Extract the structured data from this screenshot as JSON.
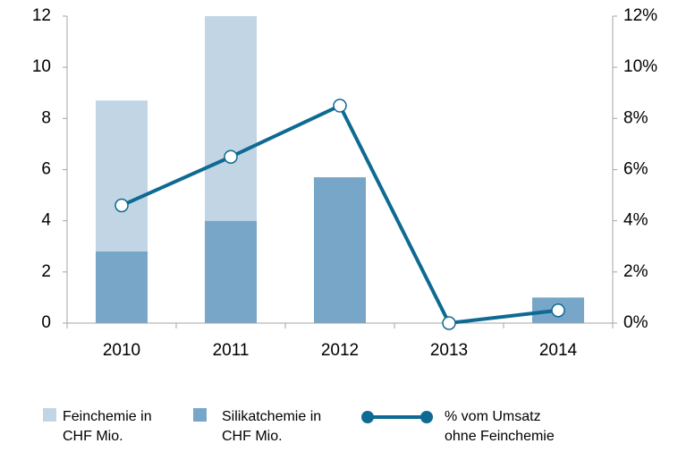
{
  "chart_data": {
    "type": "bar-line",
    "categories": [
      "2010",
      "2011",
      "2012",
      "2013",
      "2014"
    ],
    "series": [
      {
        "name": "Silikatchemie in CHF Mio.",
        "type": "bar",
        "color": "#77a6c8",
        "values": [
          2.8,
          4.0,
          5.7,
          0,
          1.0
        ]
      },
      {
        "name": "Feinchemie in CHF Mio.",
        "type": "bar",
        "color": "#c2d5e5",
        "values": [
          5.9,
          8.0,
          0,
          0,
          0
        ]
      },
      {
        "name": "% vom Umsatz ohne Feinchemie",
        "type": "line",
        "axis": "y2",
        "color": "#0e6a92",
        "values": [
          4.6,
          6.5,
          8.5,
          0,
          0.5
        ]
      }
    ],
    "stacked": true,
    "ylim": [
      0,
      12
    ],
    "yticks": [
      0,
      2,
      4,
      6,
      8,
      10,
      12
    ],
    "y2lim": [
      0,
      12
    ],
    "y2ticks": [
      {
        "value": 0,
        "label": "0%"
      },
      {
        "value": 2,
        "label": "2%"
      },
      {
        "value": 4,
        "label": "4%"
      },
      {
        "value": 6,
        "label": "6%"
      },
      {
        "value": 8,
        "label": "8%"
      },
      {
        "value": 10,
        "label": "10%"
      },
      {
        "value": 12,
        "label": "12%"
      }
    ],
    "legend": "bottom",
    "grid": false
  }
}
